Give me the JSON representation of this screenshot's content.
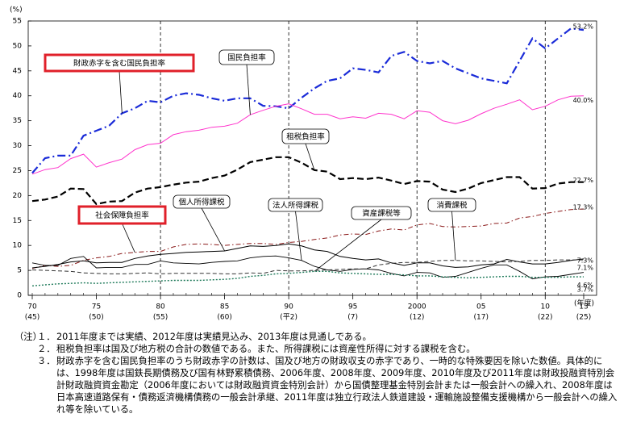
{
  "chart_data": {
    "type": "line",
    "y_unit": "(%)",
    "x_unit": "(年度)",
    "x": [
      1970,
      1971,
      1972,
      1973,
      1974,
      1975,
      1976,
      1977,
      1978,
      1979,
      1980,
      1981,
      1982,
      1983,
      1984,
      1985,
      1986,
      1987,
      1988,
      1989,
      1990,
      1991,
      1992,
      1993,
      1994,
      1995,
      1996,
      1997,
      1998,
      1999,
      2000,
      2001,
      2002,
      2003,
      2004,
      2005,
      2006,
      2007,
      2008,
      2009,
      2010,
      2011,
      2012,
      2013
    ],
    "xlim": [
      1970,
      2013
    ],
    "xticks": [
      {
        "value": 1970,
        "label": "70",
        "era": "(45)"
      },
      {
        "value": 1975,
        "label": "75",
        "era": "(50)"
      },
      {
        "value": 1980,
        "label": "80",
        "era": "(55)"
      },
      {
        "value": 1985,
        "label": "85",
        "era": "(60)"
      },
      {
        "value": 1990,
        "label": "90",
        "era": "(平2)"
      },
      {
        "value": 1995,
        "label": "95",
        "era": "(7)"
      },
      {
        "value": 2000,
        "label": "2000",
        "era": "(12)"
      },
      {
        "value": 2005,
        "label": "05",
        "era": "(17)"
      },
      {
        "value": 2010,
        "label": "10",
        "era": "(22)"
      },
      {
        "value": 2013,
        "label": "13",
        "era": "(25)"
      }
    ],
    "vlines": [
      1980,
      1990,
      2000,
      2010
    ],
    "ylim": [
      0,
      55
    ],
    "yticks": [
      0,
      5,
      10,
      15,
      20,
      25,
      30,
      35,
      40,
      45,
      50,
      55
    ],
    "series": [
      {
        "name": "財政赤字を含む国民負担率",
        "color": "#1a2bd8",
        "highlight": true,
        "end_label": "53.2%",
        "values": [
          24.5,
          27.5,
          28,
          28,
          32,
          33,
          34,
          36.5,
          37.5,
          39,
          38.7,
          40,
          40.5,
          40.2,
          39.5,
          39,
          39.5,
          39.5,
          38,
          37.9,
          37.5,
          39.6,
          41.5,
          43,
          43.5,
          45.5,
          45.2,
          44.7,
          48,
          48.8,
          47,
          46.5,
          47,
          45.5,
          44.5,
          43.5,
          43,
          42.5,
          47,
          51.5,
          49.5,
          51.5,
          53.5,
          53.2
        ]
      },
      {
        "name": "国民負担率",
        "color": "#ff33cc",
        "highlight": false,
        "end_label": "40.0%",
        "values": [
          24.3,
          25.2,
          25.6,
          27.4,
          28.3,
          25.7,
          26.6,
          27.3,
          29.2,
          30.2,
          30.5,
          32.2,
          32.8,
          33.1,
          33.7,
          33.9,
          34.5,
          36.2,
          37.1,
          37.9,
          38.4,
          37.4,
          36.3,
          36.3,
          35.4,
          35.8,
          35.5,
          36.5,
          36.3,
          35.4,
          37,
          36.7,
          35,
          34.4,
          35.1,
          36.4,
          37.5,
          38.3,
          39.2,
          37.2,
          37.9,
          39.2,
          39.9,
          40
        ]
      },
      {
        "name": "租税負担率",
        "color": "#000000",
        "highlight": false,
        "end_label": "22.7%",
        "values": [
          18.9,
          19.2,
          19.8,
          21.4,
          21.3,
          18.3,
          18.8,
          18.9,
          20.6,
          21.4,
          21.7,
          22.2,
          22.6,
          22.8,
          23.5,
          24,
          25.2,
          26.7,
          27.2,
          27.7,
          27.7,
          26.6,
          25.1,
          24.8,
          23.3,
          23.5,
          23.3,
          23.6,
          23,
          22.3,
          22.9,
          22.8,
          21.2,
          20.7,
          21.4,
          22.5,
          23.1,
          23.7,
          23.7,
          21.4,
          21.5,
          22.4,
          22.7,
          22.7
        ]
      },
      {
        "name": "社会保障負担率",
        "color": "#8b1a1a",
        "highlight": true,
        "end_label": "17.3%",
        "values": [
          5.4,
          6,
          5.8,
          6,
          7,
          7.5,
          7.8,
          8.4,
          8.6,
          8.8,
          8.8,
          9.7,
          10.2,
          10.3,
          10.2,
          10,
          10.2,
          10.4,
          10.4,
          10.2,
          10.6,
          10.8,
          11.2,
          11.5,
          12.1,
          12.3,
          12.2,
          12.9,
          13.3,
          13.1,
          14.1,
          14.4,
          13.8,
          13.7,
          13.8,
          13.9,
          14.4,
          14.5,
          15.5,
          15.8,
          16.4,
          16.8,
          17.2,
          17.3
        ]
      },
      {
        "name": "個人所得課税",
        "color": "#000000",
        "highlight": false,
        "end_label": "7.3%",
        "values": [
          5.5,
          5.8,
          6.2,
          6.7,
          6.9,
          6.5,
          6.6,
          6.6,
          7.4,
          7.9,
          8.2,
          8.4,
          8.6,
          8.7,
          8.8,
          8.9,
          9.4,
          9.9,
          9.8,
          10,
          10.3,
          9.9,
          9.1,
          8.8,
          7.8,
          7.4,
          7.1,
          7.3,
          6.5,
          6,
          6.5,
          6.5,
          5.9,
          5.6,
          5.7,
          6.1,
          6.3,
          7.2,
          6.7,
          6.3,
          6.3,
          6.6,
          7,
          7.3
        ]
      },
      {
        "name": "法人所得課税",
        "color": "#000000",
        "highlight": false,
        "end_label": "4.6%",
        "values": [
          6.5,
          6,
          6,
          7.4,
          7.8,
          5.5,
          5.6,
          5.6,
          6.2,
          6.2,
          6.9,
          6.5,
          6.4,
          6.3,
          6.6,
          6.8,
          6.9,
          7.5,
          7.8,
          7.9,
          7.5,
          7,
          5.8,
          5.1,
          4.8,
          5.2,
          5.3,
          5.1,
          4.4,
          3.9,
          4.6,
          4.5,
          3.6,
          3.8,
          4.6,
          5.4,
          6.1,
          6.1,
          4.8,
          3.3,
          3.7,
          3.8,
          4.2,
          4.6
        ]
      },
      {
        "name": "資産課税等",
        "color": "#1f7a5a",
        "highlight": false,
        "end_label": "3.7%",
        "values": [
          1.9,
          2.1,
          2.3,
          2.4,
          2.5,
          2.4,
          2.5,
          2.6,
          2.7,
          2.8,
          2.9,
          3,
          3,
          3,
          3.1,
          3.2,
          3.4,
          3.8,
          4,
          4.3,
          4.4,
          4.6,
          4.8,
          4.8,
          4.5,
          4.4,
          4.3,
          4.2,
          4.2,
          4.1,
          3.9,
          3.9,
          3.7,
          3.6,
          3.5,
          3.6,
          3.7,
          3.8,
          3.8,
          3.6,
          3.6,
          3.6,
          3.7,
          3.7
        ]
      },
      {
        "name": "消費課税",
        "color": "#333333",
        "highlight": false,
        "end_label": "7.1%",
        "values": [
          5.1,
          5,
          4.9,
          4.8,
          4.5,
          4.4,
          4.3,
          4.3,
          4.4,
          4.5,
          4.3,
          4.4,
          4.4,
          4.4,
          4.4,
          4.3,
          4.3,
          4.5,
          4.4,
          5,
          4.9,
          4.9,
          5,
          5.1,
          5.2,
          5.3,
          5.3,
          6.1,
          6.4,
          6.6,
          6.6,
          6.8,
          7,
          7,
          6.9,
          6.9,
          6.8,
          6.7,
          6.8,
          7,
          7,
          7.1,
          7.1,
          7.1
        ]
      }
    ]
  },
  "notes": {
    "prefix": "（注）",
    "items": [
      {
        "num": "１．",
        "text": "2011年度までは実績、2012年度は実績見込み、2013年度は見通しである。"
      },
      {
        "num": "２．",
        "text": "租税負担率は国及び地方税の合計の数値である。また、所得課税には資産性所得に対する課税を含む。"
      },
      {
        "num": "３．",
        "text": "財政赤字を含む国民負担率のうち財政赤字の計数は、国及び地方の財政収支の赤字であり、一時的な特殊要因を除いた数値。具体的には、1998年度は国鉄長期債務及び国有林野累積債務、2006年度、2008年度、2009年度、2010年度及び2011年度は財政投融資特別会計財政融資資金勘定（2006年度においては財政融資資金特別会計）から国債整理基金特別会計または一般会計への繰入れ、2008年度は日本高速道路保有・債務返済機構債務の一般会計承継、2011年度は独立行政法人鉄道建設・運輸施設整備支援機構から一般会計への繰入れ等を除いている。"
      }
    ]
  }
}
